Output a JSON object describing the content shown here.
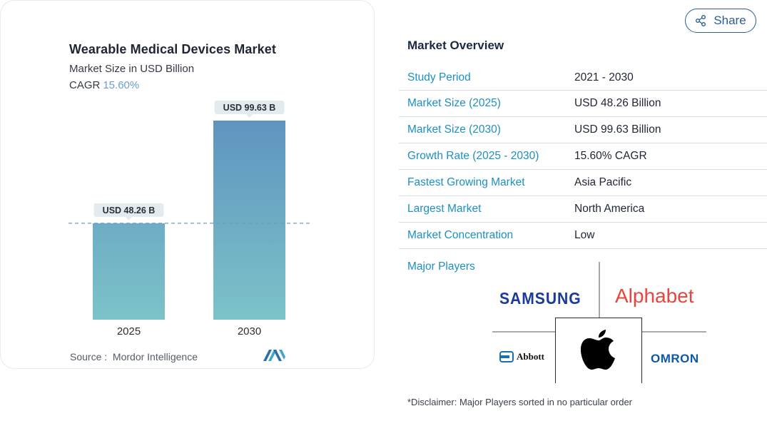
{
  "chart_data": {
    "type": "bar",
    "title": "Wearable Medical Devices Market",
    "subtitle": "Market Size in USD Billion",
    "cagr_label": "CAGR",
    "cagr_value": "15.60%",
    "categories": [
      "2025",
      "2030"
    ],
    "values": [
      48.26,
      99.63
    ],
    "data_labels": [
      "USD 48.26 B",
      "USD 99.63 B"
    ],
    "ylim": [
      0,
      99.63
    ],
    "grid": false,
    "reference_line_at": 48.26,
    "colors": {
      "bar_top": "#5f94c0",
      "bar_bottom": "#7cc3c8",
      "label_bg": "#e4ebef",
      "ref_line": "#6f9cc4"
    },
    "source_label": "Source :",
    "source": "Mordor Intelligence"
  },
  "share": {
    "label": "Share",
    "icon": "share-icon"
  },
  "overview": {
    "title": "Market Overview",
    "rows": [
      {
        "label": "Study Period",
        "value": "2021 - 2030"
      },
      {
        "label": "Market Size (2025)",
        "value": "USD 48.26 Billion"
      },
      {
        "label": "Market Size (2030)",
        "value": "USD 99.63 Billion"
      },
      {
        "label": "Growth Rate (2025 - 2030)",
        "value": "15.60% CAGR"
      },
      {
        "label": "Fastest Growing Market",
        "value": "Asia Pacific"
      },
      {
        "label": "Largest Market",
        "value": "North America"
      },
      {
        "label": "Market Concentration",
        "value": "Low"
      }
    ],
    "major_players_label": "Major Players",
    "players": [
      "SAMSUNG",
      "Alphabet",
      "Abbott",
      "OMRON"
    ],
    "disclaimer": "*Disclaimer: Major Players sorted in no particular order"
  }
}
